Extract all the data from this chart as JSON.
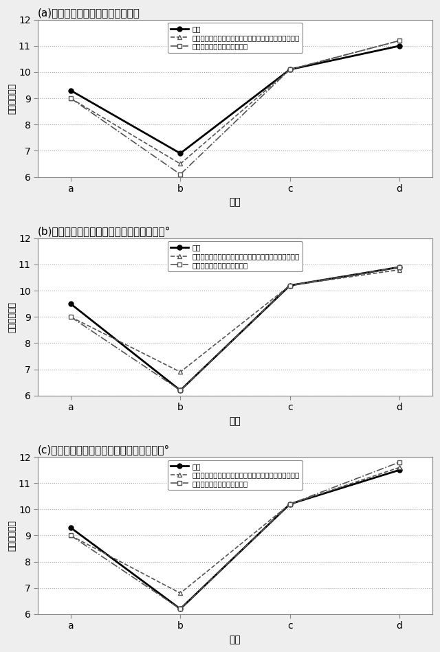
{
  "panels": [
    {
      "title": "(a)円周方向の測定位置が圧延方向",
      "x_labels": [
        "a",
        "b",
        "c",
        "d"
      ],
      "series": [
        {
          "label": "実験",
          "values": [
            9.3,
            6.9,
            10.1,
            11.0
          ],
          "style": "solid",
          "marker": "o",
          "color": "#000000",
          "linewidth": 2.0,
          "markersize": 5,
          "markerfacecolor": "#000000"
        },
        {
          "label": "計算（面内異方性に加えて板厚断面内の異方性も考慮）",
          "values": [
            9.0,
            6.5,
            10.1,
            11.2
          ],
          "style": "dashed",
          "marker": "^",
          "color": "#555555",
          "linewidth": 1.2,
          "markersize": 5,
          "markerfacecolor": "white"
        },
        {
          "label": "計算（面内異方性のみ考慮）",
          "values": [
            9.0,
            6.1,
            10.1,
            11.2
          ],
          "style": "dashdot",
          "marker": "s",
          "color": "#555555",
          "linewidth": 1.2,
          "markersize": 5,
          "markerfacecolor": "white"
        }
      ],
      "ylim": [
        6,
        12
      ],
      "yticks": [
        6,
        7,
        8,
        9,
        10,
        11,
        12
      ]
    },
    {
      "title": "(b)円周方向の測定位置が圧延方向から４５°",
      "x_labels": [
        "a",
        "b",
        "c",
        "d"
      ],
      "series": [
        {
          "label": "実験",
          "values": [
            9.5,
            6.2,
            10.2,
            10.9
          ],
          "style": "solid",
          "marker": "o",
          "color": "#000000",
          "linewidth": 2.0,
          "markersize": 5,
          "markerfacecolor": "#000000"
        },
        {
          "label": "計算（面内異方性に加えて板厚断面内の異方性も考慮）",
          "values": [
            9.0,
            6.9,
            10.2,
            10.8
          ],
          "style": "dashed",
          "marker": "^",
          "color": "#555555",
          "linewidth": 1.2,
          "markersize": 5,
          "markerfacecolor": "white"
        },
        {
          "label": "計算（面内異方性のみ考慮）",
          "values": [
            9.0,
            6.2,
            10.2,
            10.9
          ],
          "style": "dashdot",
          "marker": "s",
          "color": "#555555",
          "linewidth": 1.2,
          "markersize": 5,
          "markerfacecolor": "white"
        }
      ],
      "ylim": [
        6,
        12
      ],
      "yticks": [
        6,
        7,
        8,
        9,
        10,
        11,
        12
      ]
    },
    {
      "title": "(c)円周方向の測定位置が圧延方向から９０°",
      "x_labels": [
        "a",
        "b",
        "c",
        "d"
      ],
      "series": [
        {
          "label": "実験",
          "values": [
            9.3,
            6.2,
            10.2,
            11.5
          ],
          "style": "solid",
          "marker": "o",
          "color": "#000000",
          "linewidth": 2.0,
          "markersize": 5,
          "markerfacecolor": "#000000"
        },
        {
          "label": "計算（面内異方性に加えて板厚断面内の異方性も考慮）",
          "values": [
            9.0,
            6.8,
            10.2,
            11.6
          ],
          "style": "dashed",
          "marker": "^",
          "color": "#555555",
          "linewidth": 1.2,
          "markersize": 5,
          "markerfacecolor": "white"
        },
        {
          "label": "計算（面内異方性のみ考慮）",
          "values": [
            9.0,
            6.2,
            10.2,
            11.8
          ],
          "style": "dashdot",
          "marker": "s",
          "color": "#555555",
          "linewidth": 1.2,
          "markersize": 5,
          "markerfacecolor": "white"
        }
      ],
      "ylim": [
        6,
        12
      ],
      "yticks": [
        6,
        7,
        8,
        9,
        10,
        11,
        12
      ]
    }
  ],
  "xlabel": "位置",
  "ylabel": "板厚（ｍｍ）",
  "background_color": "#f0f0f0",
  "plot_bg_color": "#ffffff",
  "grid_color": "#aaaaaa"
}
